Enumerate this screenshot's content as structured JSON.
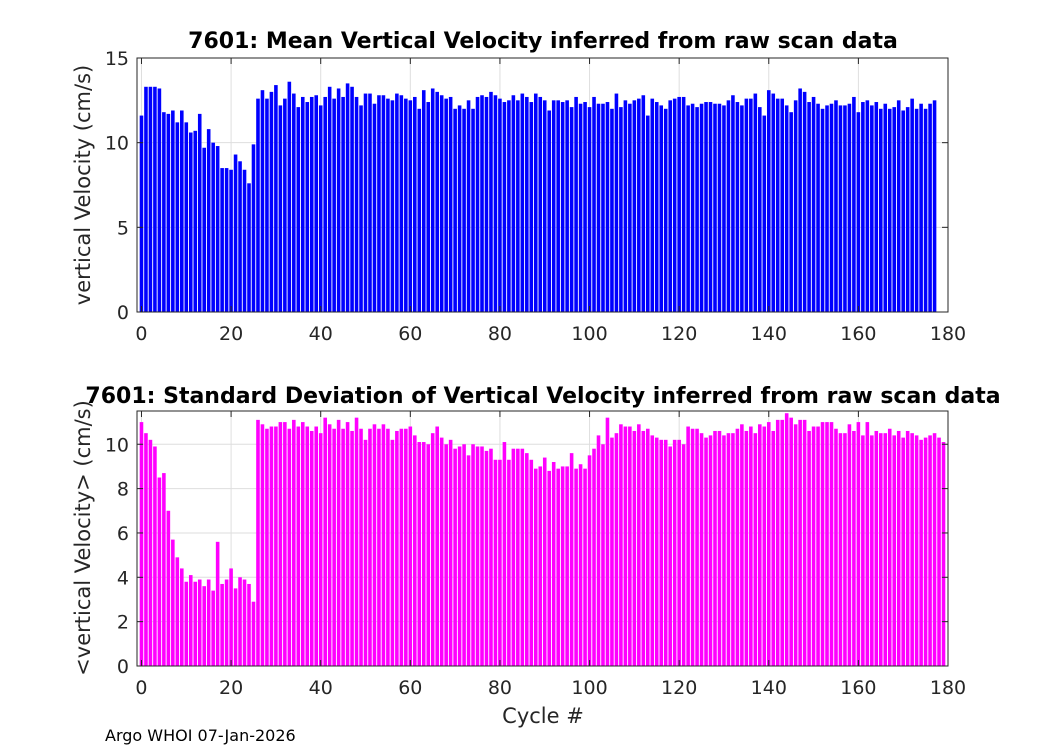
{
  "chart_data": [
    {
      "type": "bar",
      "title": "7601: Mean Vertical Velocity inferred from raw scan data",
      "xlabel": "",
      "ylabel": "vertical Velocity (cm/s)",
      "xlim": [
        -1,
        180
      ],
      "ylim": [
        0,
        15
      ],
      "xticks": [
        0,
        20,
        40,
        60,
        80,
        100,
        120,
        140,
        160,
        180
      ],
      "yticks": [
        0,
        5,
        10,
        15
      ],
      "color": "#0000ff",
      "grid": true,
      "x_start": 0,
      "values": [
        11.6,
        13.3,
        13.3,
        13.3,
        13.2,
        11.8,
        11.7,
        11.9,
        11.2,
        11.9,
        11.2,
        10.6,
        10.7,
        11.7,
        9.7,
        10.8,
        10.0,
        9.8,
        8.5,
        8.5,
        8.4,
        9.3,
        8.9,
        8.4,
        7.6,
        9.9,
        12.6,
        13.1,
        12.6,
        13.0,
        13.4,
        12.2,
        12.6,
        13.6,
        12.9,
        12.1,
        12.7,
        12.4,
        12.7,
        12.8,
        12.2,
        12.7,
        13.3,
        12.6,
        13.2,
        12.7,
        13.5,
        13.3,
        12.7,
        12.2,
        12.9,
        12.9,
        12.3,
        12.8,
        12.8,
        12.6,
        12.5,
        12.9,
        12.8,
        12.6,
        12.5,
        12.7,
        12.0,
        13.1,
        12.4,
        13.2,
        13.0,
        12.8,
        12.6,
        12.7,
        12.0,
        12.2,
        12.0,
        12.5,
        12.0,
        12.7,
        12.8,
        12.7,
        13.0,
        12.8,
        12.6,
        12.4,
        12.5,
        12.8,
        12.5,
        12.9,
        12.7,
        12.4,
        12.9,
        12.7,
        12.5,
        11.9,
        12.5,
        12.5,
        12.4,
        12.5,
        12.1,
        12.7,
        12.3,
        12.4,
        12.1,
        12.7,
        12.3,
        12.3,
        12.4,
        12.0,
        12.9,
        12.1,
        12.5,
        12.3,
        12.5,
        12.6,
        12.8,
        11.6,
        12.6,
        12.4,
        12.2,
        12.0,
        12.5,
        12.6,
        12.7,
        12.7,
        12.2,
        12.3,
        12.1,
        12.3,
        12.4,
        12.4,
        12.3,
        12.3,
        12.2,
        12.5,
        12.8,
        12.4,
        12.2,
        12.6,
        12.6,
        12.9,
        12.1,
        11.6,
        13.1,
        12.9,
        12.6,
        12.6,
        12.2,
        11.8,
        12.5,
        13.2,
        13.0,
        12.4,
        12.7,
        12.3,
        12.0,
        12.2,
        12.3,
        12.5,
        12.2,
        12.2,
        12.3,
        12.7,
        11.8,
        12.4,
        12.5,
        12.2,
        12.4,
        12.0,
        12.3,
        12.0,
        12.1,
        12.5,
        11.9,
        12.1,
        12.6,
        12.0,
        12.3,
        12.0,
        12.3,
        12.5
      ]
    },
    {
      "type": "bar",
      "title": "7601: Standard Deviation of Vertical Velocity inferred from raw scan data",
      "xlabel": "Cycle #",
      "ylabel": "<vertical Velocity> (cm/s)",
      "xlim": [
        -1,
        180
      ],
      "ylim": [
        0,
        11.5
      ],
      "xticks": [
        0,
        20,
        40,
        60,
        80,
        100,
        120,
        140,
        160,
        180
      ],
      "yticks": [
        0,
        2,
        4,
        6,
        8,
        10
      ],
      "color": "#ff00ff",
      "grid": true,
      "x_start": 0,
      "values": [
        11.0,
        10.5,
        10.2,
        9.9,
        8.5,
        8.7,
        7.0,
        5.7,
        4.9,
        4.4,
        3.8,
        4.1,
        3.8,
        3.9,
        3.6,
        3.9,
        3.4,
        5.6,
        3.7,
        3.9,
        4.4,
        3.5,
        4.0,
        3.9,
        3.7,
        2.9,
        11.1,
        10.9,
        10.7,
        10.8,
        10.8,
        11.0,
        11.0,
        10.7,
        11.1,
        10.8,
        11.0,
        10.8,
        10.6,
        10.8,
        10.5,
        11.2,
        10.9,
        10.7,
        11.1,
        10.7,
        11.0,
        10.6,
        11.2,
        10.7,
        10.2,
        10.7,
        10.9,
        10.7,
        10.9,
        10.7,
        10.2,
        10.6,
        10.7,
        10.7,
        10.8,
        10.4,
        10.1,
        10.1,
        10.0,
        10.5,
        10.8,
        10.3,
        10.0,
        10.2,
        9.8,
        9.9,
        10.0,
        9.5,
        10.0,
        9.9,
        9.9,
        9.7,
        9.8,
        9.3,
        9.3,
        10.1,
        9.3,
        9.8,
        9.8,
        9.8,
        9.6,
        9.3,
        8.9,
        9.0,
        9.4,
        8.8,
        9.2,
        8.9,
        9.0,
        9.0,
        9.6,
        8.9,
        9.1,
        8.9,
        9.5,
        9.8,
        10.4,
        10.0,
        11.2,
        10.3,
        10.5,
        10.9,
        10.8,
        10.8,
        10.6,
        10.9,
        10.6,
        10.7,
        10.4,
        10.3,
        10.2,
        10.2,
        9.9,
        10.2,
        10.2,
        10.0,
        10.8,
        10.7,
        10.7,
        10.5,
        10.3,
        10.4,
        10.6,
        10.6,
        10.4,
        10.5,
        10.5,
        10.7,
        10.9,
        10.6,
        10.8,
        10.5,
        10.9,
        10.8,
        11.0,
        10.6,
        11.1,
        11.1,
        11.4,
        11.2,
        10.9,
        11.1,
        11.1,
        10.6,
        10.8,
        10.8,
        11.0,
        11.0,
        11.0,
        10.7,
        10.5,
        10.5,
        10.9,
        10.6,
        11.0,
        10.4,
        11.0,
        10.4,
        10.6,
        10.5,
        10.5,
        10.7,
        10.4,
        10.6,
        10.3,
        10.6,
        10.5,
        10.4,
        10.2,
        10.3,
        10.4,
        10.5,
        10.3,
        10.1
      ]
    }
  ],
  "footer": "Argo WHOI 07-Jan-2026"
}
